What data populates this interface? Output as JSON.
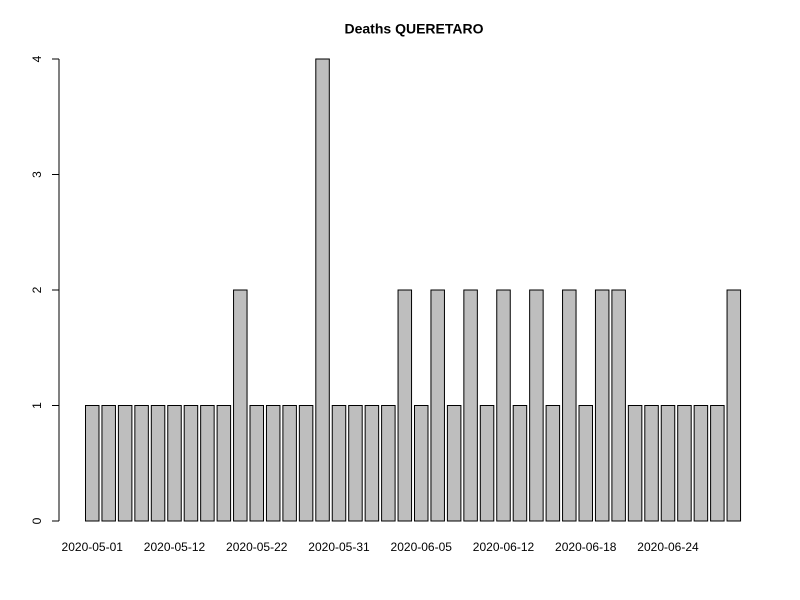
{
  "chart_data": {
    "type": "bar",
    "title": "Deaths QUERETARO",
    "categories": [
      "2020-05-01",
      null,
      null,
      null,
      null,
      "2020-05-12",
      null,
      null,
      null,
      null,
      "2020-05-22",
      null,
      null,
      null,
      null,
      "2020-05-31",
      null,
      null,
      null,
      null,
      "2020-06-05",
      null,
      null,
      null,
      null,
      "2020-06-12",
      null,
      null,
      null,
      null,
      "2020-06-18",
      null,
      null,
      null,
      null,
      "2020-06-24",
      null,
      null,
      null,
      null
    ],
    "values": [
      1,
      1,
      1,
      1,
      1,
      1,
      1,
      1,
      1,
      2,
      1,
      1,
      1,
      1,
      4,
      1,
      1,
      1,
      1,
      2,
      1,
      2,
      1,
      2,
      1,
      2,
      1,
      2,
      1,
      2,
      1,
      2,
      2,
      1,
      1,
      1,
      1,
      1,
      1,
      2
    ],
    "color": "#bebebe",
    "ylim": [
      0,
      4
    ],
    "yticks": [
      0,
      1,
      2,
      3,
      4
    ],
    "grid": false
  }
}
